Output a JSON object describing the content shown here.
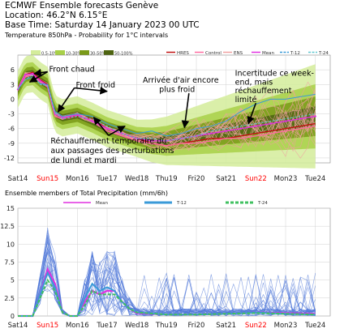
{
  "header": {
    "line1": "ECMWF Ensemble forecasts Genève",
    "line2": "Location:  46.2°N 6.15°E",
    "line3": "Base Time: Saturday 14 January 2023 00 UTC"
  },
  "chart_data": [
    {
      "type": "line",
      "title": "Temperature 850hPa - Probability for 1°C intervals",
      "ylim": [
        -13,
        9
      ],
      "yticks": [
        6,
        3,
        0,
        -3,
        -6,
        -9,
        -12
      ],
      "xlim": [
        0,
        10.5
      ],
      "xtick_labels": [
        "Sat14",
        "Sun15",
        "Mon16",
        "Tue17",
        "Wed18",
        "Thu19",
        "Fri20",
        "Sat21",
        "Sun22",
        "Mon23",
        "Tue24"
      ],
      "weekend_labels": [
        "Sun15",
        "Sun22"
      ],
      "grid": true,
      "legend": {
        "probability": [
          "0.5-10%",
          "10-30%",
          "30-50%",
          "50-100%"
        ],
        "lines": [
          "HRES",
          "Control",
          "ENS",
          "Mean",
          "T-12",
          "T-24"
        ]
      },
      "colors": {
        "prob": [
          "#d4ec9a",
          "#a8d048",
          "#7a9a18",
          "#4e6410"
        ],
        "hres": "#c01010",
        "control": "#ff6aa0",
        "ens": "#f0a0a0",
        "mean": "#e030e0",
        "t12": "#3a9ad8",
        "t24": "#60c8d0",
        "weekend": "#ff0000"
      },
      "series": [
        {
          "name": "HRES",
          "x": [
            0,
            0.25,
            0.5,
            0.75,
            1.0,
            1.25,
            1.5,
            2.0,
            2.5,
            3.0,
            3.5,
            4.0,
            4.5,
            5.0,
            5.5,
            6.0,
            6.5,
            7.0,
            7.5,
            8.0,
            8.5,
            9.0,
            9.5,
            10.0
          ],
          "y": [
            2,
            5,
            5.5,
            4,
            3,
            -3,
            -4,
            -3.5,
            -4,
            -6,
            -7,
            -8,
            -9,
            -9.5,
            -9,
            -8.5,
            -8,
            -8,
            -7.5,
            -7,
            -6.5,
            -6,
            -5.5,
            -5
          ]
        },
        {
          "name": "Control",
          "x": [
            0,
            0.25,
            0.5,
            0.75,
            1.0,
            1.25,
            1.5,
            2.0,
            2.5,
            3.0,
            3.5,
            4.0,
            4.5,
            5.0,
            5.5,
            6.0,
            6.5,
            7.0,
            7.5,
            8.0,
            8.5,
            9.0,
            9.5,
            10.0
          ],
          "y": [
            2,
            4.5,
            5,
            3.5,
            2.5,
            -3.5,
            -4,
            -3,
            -4.5,
            -6.5,
            -7.5,
            -8.5,
            -9,
            -9.5,
            -9,
            -9,
            -8.5,
            -8,
            -8,
            -7.5,
            -7,
            -6.5,
            -6,
            -5.5
          ]
        },
        {
          "name": "Mean",
          "x": [
            0,
            0.25,
            0.5,
            0.75,
            1.0,
            1.25,
            1.5,
            2.0,
            2.5,
            3.0,
            3.5,
            4.0,
            4.5,
            5.0,
            5.5,
            6.0,
            6.5,
            7.0,
            7.5,
            8.0,
            8.5,
            9.0,
            9.5,
            10.0
          ],
          "y": [
            2,
            5,
            5.2,
            3.8,
            2.8,
            -3,
            -3.8,
            -3.2,
            -4.5,
            -6,
            -7,
            -8,
            -8.5,
            -8.5,
            -8,
            -7.5,
            -7,
            -6.5,
            -6,
            -5.5,
            -5,
            -4.5,
            -4,
            -3.5
          ]
        },
        {
          "name": "T-12",
          "x": [
            0,
            0.25,
            0.5,
            0.75,
            1.0,
            1.25,
            1.5,
            2.0,
            2.5,
            3.0,
            3.5,
            4.0,
            4.5,
            5.0,
            5.5,
            6.0,
            6.5,
            7.0,
            7.5,
            8.0,
            8.5,
            9.0,
            9.5,
            10.0
          ],
          "y": [
            2,
            4,
            4.5,
            3.2,
            3,
            -2.5,
            -3.5,
            -3,
            -3.5,
            -5,
            -6,
            -7,
            -6.5,
            -7.5,
            -7,
            -6,
            -5.5,
            -4.5,
            -2.5,
            -1,
            0,
            0,
            0.5,
            1
          ]
        },
        {
          "name": "T-24",
          "x": [
            0,
            0.25,
            0.5,
            0.75,
            1.0,
            1.25,
            1.5,
            2.0,
            2.5,
            3.0,
            3.5,
            4.0,
            4.5,
            5.0,
            5.5,
            6.0,
            6.5,
            7.0,
            7.5,
            8.0,
            8.5,
            9.0,
            9.5,
            10.0
          ],
          "y": [
            2,
            4,
            5,
            3,
            2.8,
            -2.8,
            -4,
            -3.5,
            -4,
            -5.5,
            -7,
            -8,
            -8,
            -8.5,
            -8,
            -7.5,
            -6.5,
            -6,
            -5.5,
            -5,
            -4.5,
            -4,
            -3.5,
            -3
          ]
        }
      ],
      "annotations": [
        {
          "text": "Front chaud",
          "x": 1.05,
          "y": 5.6
        },
        {
          "text": "Front froid",
          "x": 1.95,
          "y": 2.4
        },
        {
          "text": "Arrivée d'air encore",
          "x": 4.2,
          "y": 3.4
        },
        {
          "text": "plus froid",
          "x": 4.75,
          "y": 1.5
        },
        {
          "text": "Incertitude ce week-",
          "x": 7.3,
          "y": 4.8
        },
        {
          "text": "end, mais",
          "x": 7.3,
          "y": 3.0
        },
        {
          "text": "réchauffement",
          "x": 7.3,
          "y": 1.2
        },
        {
          "text": "limité",
          "x": 7.3,
          "y": -0.6
        },
        {
          "text": "Réchauffement temporaire dû",
          "x": 1.1,
          "y": -9.0
        },
        {
          "text": "aux passages des perturbations",
          "x": 1.1,
          "y": -11.0
        },
        {
          "text": "de lundi et mardi",
          "x": 1.1,
          "y": -13.0
        }
      ]
    },
    {
      "type": "line",
      "title": "Ensemble members of Total Precipitation (mm/6h)",
      "ylim": [
        0,
        15
      ],
      "yticks": [
        0,
        2.5,
        5,
        7.5,
        10,
        12.5,
        15
      ],
      "ytick_labels": [
        "0",
        "2.5",
        "5",
        "7.5",
        "10",
        "12.5",
        "15"
      ],
      "xlim": [
        0,
        10.5
      ],
      "xtick_labels": [
        "Sat14",
        "Sun15",
        "Mon16",
        "Tue17",
        "Wed18",
        "Thu19",
        "Fri20",
        "Sat21",
        "Sun22",
        "Mon23",
        "Tue24"
      ],
      "weekend_labels": [
        "Sun15",
        "Sun22"
      ],
      "grid": true,
      "legend": {
        "lines": [
          "Mean",
          "T-12",
          "T-24"
        ]
      },
      "colors": {
        "members": "#5078d8",
        "mean": "#e030e0",
        "t12": "#3a9ad8",
        "t24": "#40c060",
        "control": "#e02050"
      },
      "series": [
        {
          "name": "Mean",
          "x": [
            0,
            0.5,
            0.75,
            1.0,
            1.25,
            1.5,
            1.75,
            2.0,
            2.25,
            2.5,
            2.75,
            3.0,
            3.25,
            3.5,
            3.75,
            4.0,
            5.0,
            6.0,
            7.0,
            8.0,
            9.0,
            10.0
          ],
          "y": [
            0,
            0,
            3,
            6.5,
            4.5,
            0.5,
            0,
            0,
            2,
            3.5,
            3,
            3.5,
            3.5,
            2,
            1,
            0.4,
            0.2,
            0.2,
            0.3,
            0.5,
            0.4,
            0.3
          ]
        },
        {
          "name": "T-12",
          "x": [
            0,
            0.5,
            0.75,
            1.0,
            1.25,
            1.5,
            1.75,
            2.0,
            2.25,
            2.5,
            2.75,
            3.0,
            3.25,
            3.5,
            3.75,
            4.0,
            5.0,
            6.0,
            7.0,
            8.0,
            9.0,
            10.0
          ],
          "y": [
            0,
            0,
            3,
            6,
            4,
            0.5,
            0,
            0,
            2.5,
            4.5,
            3.5,
            4,
            3.5,
            2,
            1,
            0.5,
            0.2,
            0.2,
            0.3,
            0.5,
            0.3,
            0.2
          ]
        },
        {
          "name": "T-24",
          "x": [
            0,
            0.5,
            0.75,
            1.0,
            1.25,
            1.5,
            1.75,
            2.0,
            2.25,
            2.5,
            2.75,
            3.0,
            3.25,
            3.5,
            3.75,
            4.0,
            5.0,
            6.0,
            7.0,
            8.0,
            9.0,
            10.0
          ],
          "y": [
            0,
            0,
            2.5,
            5,
            3.5,
            0.5,
            0,
            0,
            1.5,
            3.5,
            3,
            3,
            3,
            2,
            1,
            0.5,
            0.2,
            0.2,
            0.3,
            0.4,
            0.3,
            0.2
          ]
        }
      ]
    }
  ]
}
